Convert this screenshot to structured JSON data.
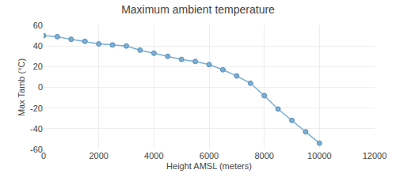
{
  "chart_data": {
    "type": "line",
    "title": "Maximum ambient temperature",
    "xlabel": "Height AMSL (meters)",
    "ylabel": "Max Tamb (°C)",
    "x": [
      0,
      500,
      1000,
      1500,
      2000,
      2500,
      3000,
      3500,
      4000,
      4500,
      5000,
      5500,
      6000,
      6500,
      7000,
      7500,
      8000,
      8500,
      9000,
      9500,
      10000
    ],
    "values": [
      50,
      49,
      46.5,
      44.5,
      42,
      41,
      40,
      36,
      33,
      30,
      27,
      25,
      22,
      17,
      11,
      4,
      -8,
      -21,
      -32,
      -43,
      -54
    ],
    "xlim": [
      0,
      12000
    ],
    "ylim": [
      -60,
      60
    ],
    "xticks": [
      0,
      2000,
      4000,
      6000,
      8000,
      10000,
      12000
    ],
    "yticks": [
      -60,
      -40,
      -20,
      0,
      20,
      40,
      60
    ],
    "color": "#7aafd4",
    "marker": "circle",
    "line_style": "solid",
    "grid": true
  }
}
